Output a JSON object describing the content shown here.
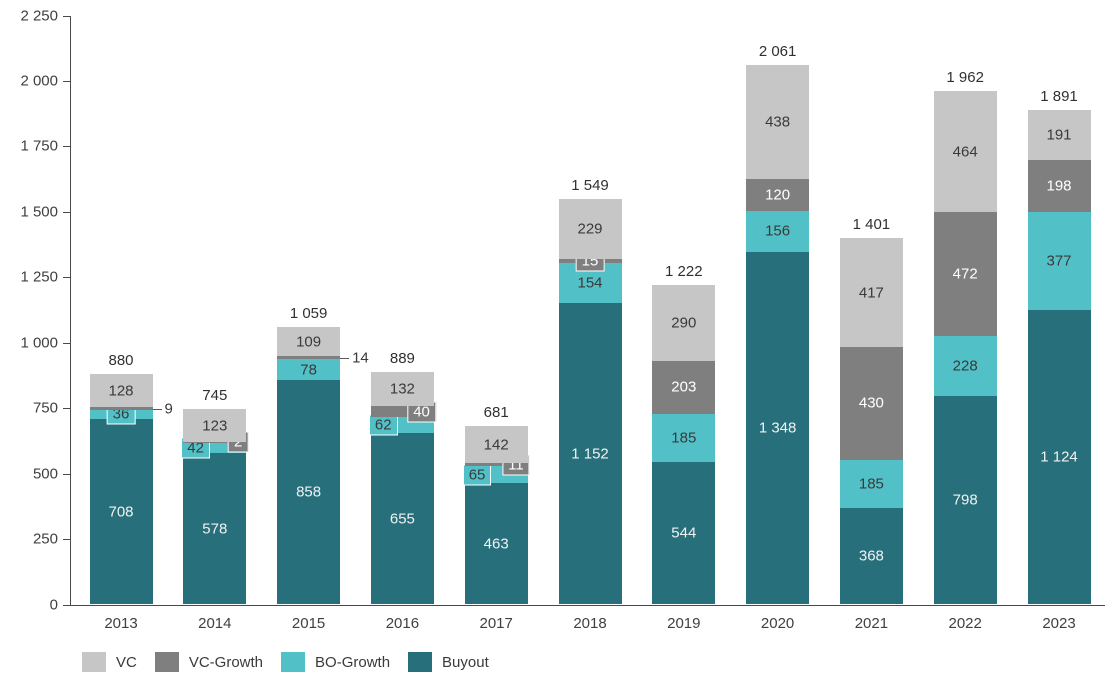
{
  "chart_data": {
    "type": "bar",
    "stacked": true,
    "title": "",
    "xlabel": "",
    "ylabel": "",
    "grid": false,
    "legend_position": "bottom-left",
    "number_format": "space-thousands",
    "categories": [
      "2013",
      "2014",
      "2015",
      "2016",
      "2017",
      "2018",
      "2019",
      "2020",
      "2021",
      "2022",
      "2023"
    ],
    "series": [
      {
        "name": "Buyout",
        "color": "#266F7B",
        "label_color": "#f2f2f2",
        "values": [
          708,
          578,
          858,
          655,
          463,
          1152,
          544,
          1348,
          368,
          798,
          1124
        ]
      },
      {
        "name": "BO-Growth",
        "color": "#52C0C7",
        "label_color": "#3a3a3a",
        "values": [
          36,
          42,
          78,
          62,
          65,
          154,
          185,
          156,
          185,
          228,
          377
        ]
      },
      {
        "name": "VC-Growth",
        "color": "#7F7F7F",
        "label_color": "#ffffff",
        "values": [
          9,
          2,
          14,
          40,
          11,
          15,
          203,
          120,
          430,
          472,
          198
        ]
      },
      {
        "name": "VC",
        "color": "#C6C6C6",
        "label_color": "#3a3a3a",
        "values": [
          128,
          123,
          109,
          132,
          142,
          229,
          290,
          438,
          417,
          464,
          191
        ]
      }
    ],
    "totals": [
      880,
      745,
      1059,
      889,
      681,
      1549,
      1222,
      2061,
      1401,
      1962,
      1891
    ],
    "y_axis": {
      "min": 0,
      "max": 2250,
      "step": 250
    },
    "legend": [
      {
        "label": "VC",
        "color": "#C6C6C6"
      },
      {
        "label": "VC-Growth",
        "color": "#7F7F7F"
      },
      {
        "label": "BO-Growth",
        "color": "#52C0C7"
      },
      {
        "label": "Buyout",
        "color": "#266F7B"
      }
    ],
    "label_overrides": {
      "2013|BO-Growth": {
        "style": "box",
        "align": "center"
      },
      "2013|VC-Growth": {
        "style": "callout"
      },
      "2014|BO-Growth": {
        "style": "box",
        "align": "left"
      },
      "2014|VC-Growth": {
        "style": "box",
        "align": "right"
      },
      "2015|VC-Growth": {
        "style": "callout"
      },
      "2016|BO-Growth": {
        "style": "box",
        "align": "left"
      },
      "2016|VC-Growth": {
        "style": "box",
        "align": "right"
      },
      "2017|BO-Growth": {
        "style": "box",
        "align": "left"
      },
      "2017|VC-Growth": {
        "style": "box",
        "align": "right"
      },
      "2018|VC-Growth": {
        "style": "box",
        "align": "center"
      }
    }
  }
}
